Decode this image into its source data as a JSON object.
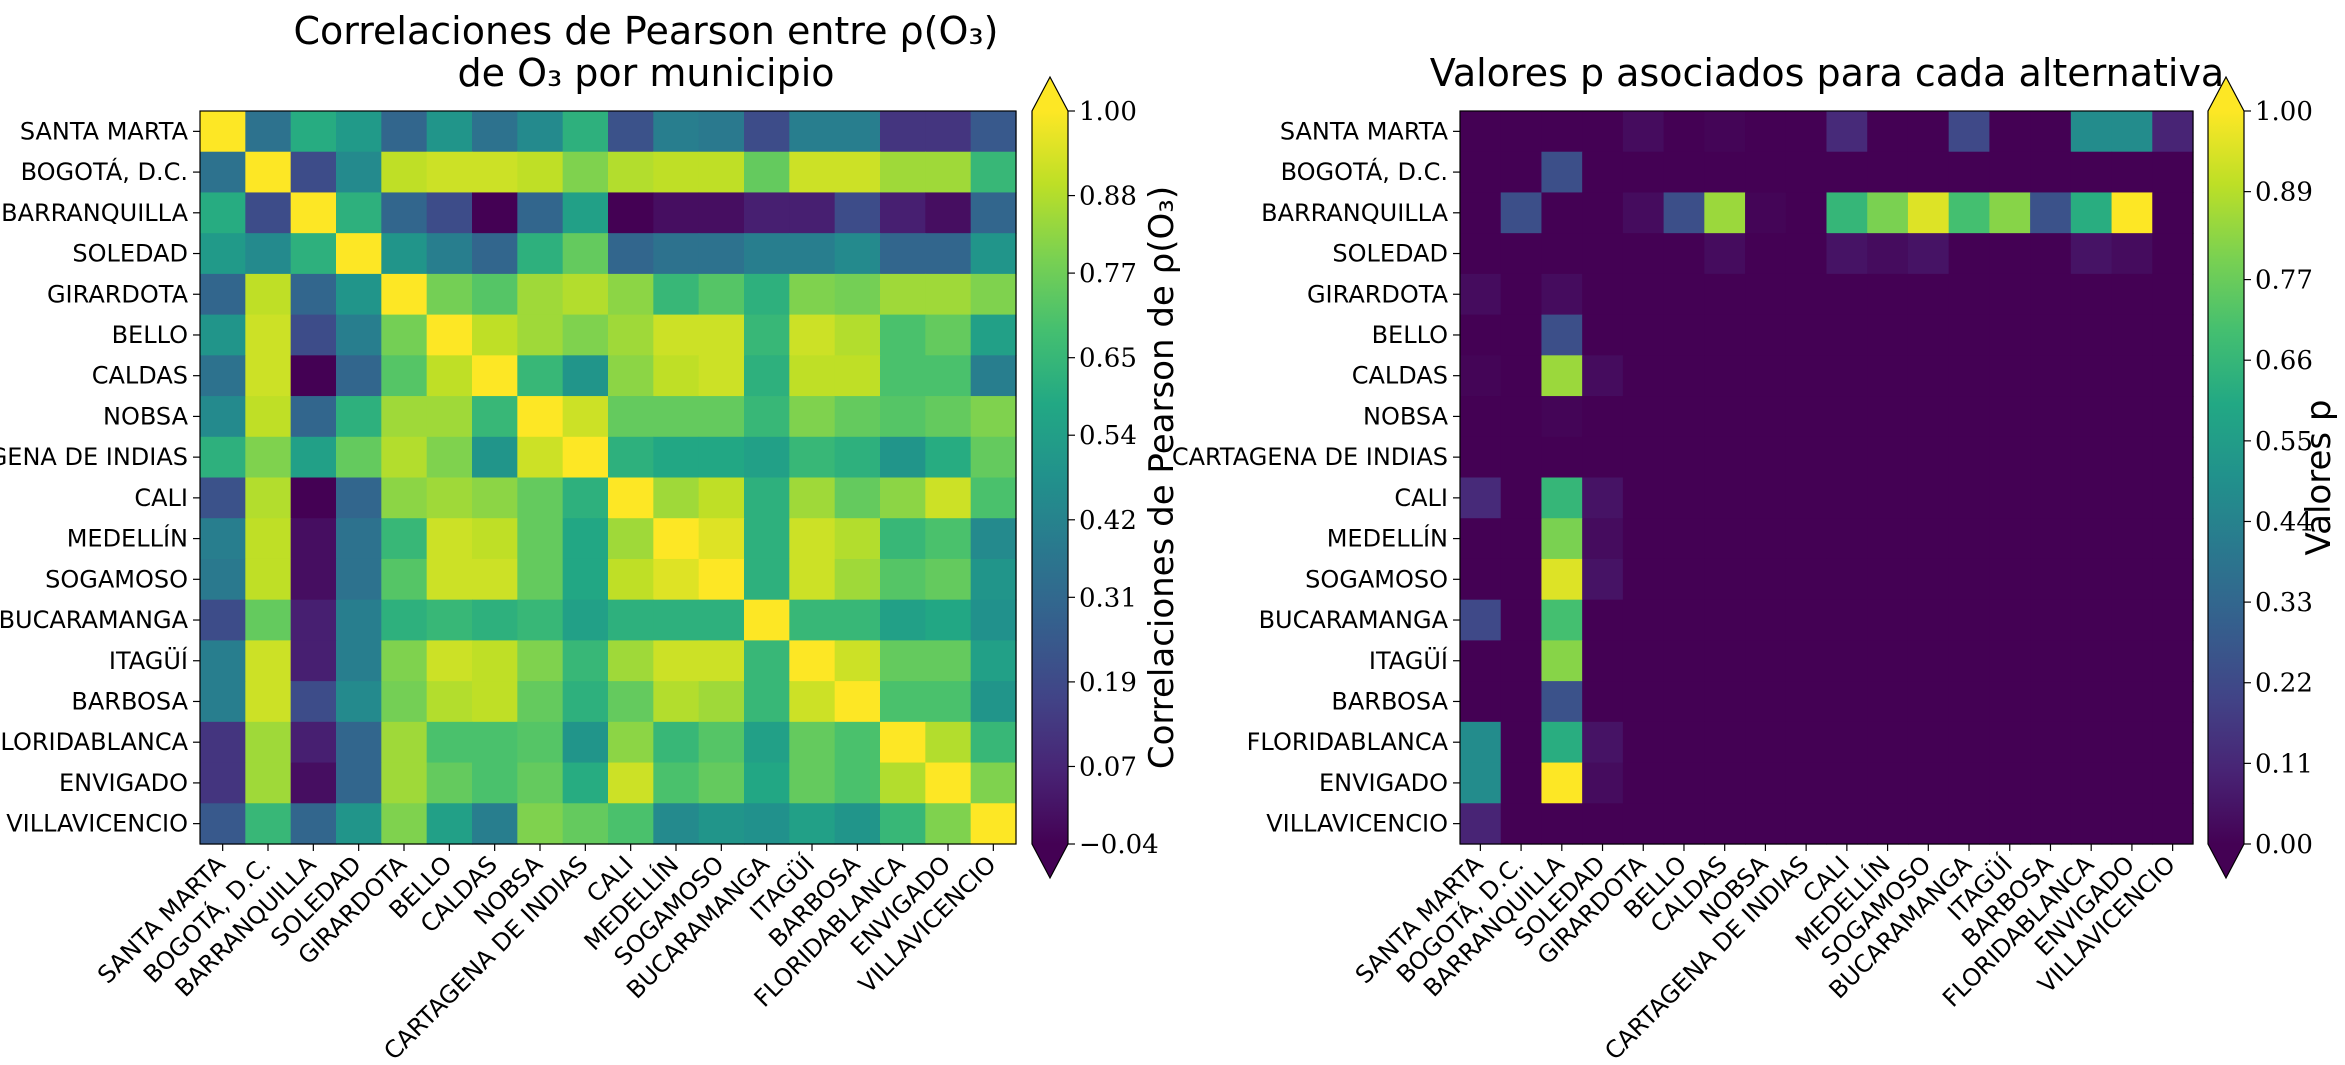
{
  "chart_data": [
    {
      "type": "heatmap",
      "title_lines": [
        "Correlaciones de Pearson entre ρ(O₃)",
        "de O₃ por municipio"
      ],
      "rows": [
        "SANTA MARTA",
        "BOGOTÁ, D.C.",
        "BARRANQUILLA",
        "SOLEDAD",
        "GIRARDOTA",
        "BELLO",
        "CALDAS",
        "NOBSA",
        "CARTAGENA DE INDIAS",
        "CALI",
        "MEDELLÍN",
        "SOGAMOSO",
        "BUCARAMANGA",
        "ITAGÜÍ",
        "BARBOSA",
        "FLORIDABLANCA",
        "ENVIGADO",
        "VILLAVICENCIO"
      ],
      "columns": [
        "SANTA MARTA",
        "BOGOTÁ, D.C.",
        "BARRANQUILLA",
        "SOLEDAD",
        "GIRARDOTA",
        "BELLO",
        "CALDAS",
        "NOBSA",
        "CARTAGENA DE INDIAS",
        "CALI",
        "MEDELLÍN",
        "SOGAMOSO",
        "BUCARAMANGA",
        "ITAGÜÍ",
        "BARBOSA",
        "FLORIDABLANCA",
        "ENVIGADO",
        "VILLAVICENCIO"
      ],
      "values": [
        [
          1.0,
          0.35,
          0.6,
          0.52,
          0.3,
          0.5,
          0.35,
          0.45,
          0.62,
          0.22,
          0.4,
          0.38,
          0.2,
          0.4,
          0.4,
          0.12,
          0.12,
          0.25
        ],
        [
          0.35,
          1.0,
          0.2,
          0.45,
          0.9,
          0.92,
          0.92,
          0.9,
          0.8,
          0.88,
          0.9,
          0.9,
          0.75,
          0.92,
          0.92,
          0.85,
          0.85,
          0.65
        ],
        [
          0.6,
          0.2,
          1.0,
          0.62,
          0.3,
          0.2,
          -0.04,
          0.3,
          0.55,
          -0.04,
          0.0,
          0.0,
          0.05,
          0.05,
          0.2,
          0.05,
          0.0,
          0.3
        ],
        [
          0.52,
          0.45,
          0.62,
          1.0,
          0.5,
          0.4,
          0.3,
          0.62,
          0.75,
          0.3,
          0.35,
          0.35,
          0.4,
          0.4,
          0.45,
          0.3,
          0.3,
          0.5
        ],
        [
          0.3,
          0.9,
          0.3,
          0.5,
          1.0,
          0.78,
          0.72,
          0.85,
          0.88,
          0.82,
          0.65,
          0.72,
          0.62,
          0.8,
          0.78,
          0.85,
          0.85,
          0.8
        ],
        [
          0.5,
          0.92,
          0.2,
          0.4,
          0.78,
          1.0,
          0.9,
          0.85,
          0.8,
          0.85,
          0.92,
          0.92,
          0.65,
          0.92,
          0.88,
          0.7,
          0.75,
          0.55
        ],
        [
          0.35,
          0.92,
          -0.04,
          0.3,
          0.72,
          0.9,
          1.0,
          0.65,
          0.5,
          0.82,
          0.9,
          0.92,
          0.62,
          0.9,
          0.9,
          0.7,
          0.7,
          0.4
        ],
        [
          0.45,
          0.9,
          0.3,
          0.62,
          0.85,
          0.85,
          0.65,
          1.0,
          0.92,
          0.75,
          0.75,
          0.75,
          0.65,
          0.8,
          0.75,
          0.72,
          0.75,
          0.8
        ],
        [
          0.62,
          0.8,
          0.55,
          0.75,
          0.88,
          0.8,
          0.5,
          0.92,
          1.0,
          0.62,
          0.58,
          0.58,
          0.55,
          0.65,
          0.62,
          0.5,
          0.6,
          0.75
        ],
        [
          0.22,
          0.88,
          -0.04,
          0.3,
          0.82,
          0.85,
          0.82,
          0.75,
          0.62,
          1.0,
          0.85,
          0.9,
          0.62,
          0.85,
          0.75,
          0.82,
          0.92,
          0.7
        ],
        [
          0.4,
          0.9,
          0.0,
          0.35,
          0.65,
          0.92,
          0.9,
          0.75,
          0.58,
          0.85,
          1.0,
          0.95,
          0.62,
          0.92,
          0.88,
          0.65,
          0.7,
          0.45
        ],
        [
          0.38,
          0.9,
          0.0,
          0.35,
          0.72,
          0.92,
          0.92,
          0.75,
          0.58,
          0.9,
          0.95,
          1.0,
          0.62,
          0.92,
          0.85,
          0.72,
          0.75,
          0.5
        ],
        [
          0.2,
          0.75,
          0.05,
          0.4,
          0.62,
          0.65,
          0.62,
          0.65,
          0.55,
          0.62,
          0.62,
          0.62,
          1.0,
          0.65,
          0.65,
          0.55,
          0.58,
          0.48
        ],
        [
          0.4,
          0.92,
          0.05,
          0.4,
          0.8,
          0.92,
          0.9,
          0.8,
          0.65,
          0.85,
          0.92,
          0.92,
          0.65,
          1.0,
          0.92,
          0.75,
          0.75,
          0.55
        ],
        [
          0.4,
          0.92,
          0.2,
          0.45,
          0.78,
          0.88,
          0.9,
          0.75,
          0.62,
          0.75,
          0.88,
          0.85,
          0.65,
          0.92,
          1.0,
          0.7,
          0.7,
          0.5
        ],
        [
          0.12,
          0.85,
          0.05,
          0.3,
          0.85,
          0.7,
          0.7,
          0.72,
          0.5,
          0.82,
          0.65,
          0.72,
          0.55,
          0.75,
          0.7,
          1.0,
          0.88,
          0.65
        ],
        [
          0.12,
          0.85,
          0.0,
          0.3,
          0.85,
          0.75,
          0.7,
          0.75,
          0.6,
          0.92,
          0.7,
          0.75,
          0.58,
          0.75,
          0.7,
          0.88,
          1.0,
          0.8
        ],
        [
          0.25,
          0.65,
          0.3,
          0.5,
          0.8,
          0.55,
          0.4,
          0.8,
          0.75,
          0.7,
          0.45,
          0.5,
          0.48,
          0.55,
          0.5,
          0.65,
          0.8,
          1.0
        ]
      ],
      "colorbar": {
        "label": "Correlaciones de Pearson de ρ(O₃)",
        "min": -0.04,
        "max": 1.0,
        "ticks": [
          "1.00",
          "0.88",
          "0.77",
          "0.65",
          "0.54",
          "0.42",
          "0.31",
          "0.19",
          "0.07",
          "−0.04"
        ],
        "tick_values": [
          1.0,
          0.88,
          0.77,
          0.65,
          0.54,
          0.42,
          0.31,
          0.19,
          0.07,
          -0.04
        ]
      },
      "colormap": "viridis"
    },
    {
      "type": "heatmap",
      "title_lines": [
        "Valores p asociados para cada alternativa"
      ],
      "rows": [
        "SANTA MARTA",
        "BOGOTÁ, D.C.",
        "BARRANQUILLA",
        "SOLEDAD",
        "GIRARDOTA",
        "BELLO",
        "CALDAS",
        "NOBSA",
        "CARTAGENA DE INDIAS",
        "CALI",
        "MEDELLÍN",
        "SOGAMOSO",
        "BUCARAMANGA",
        "ITAGÜÍ",
        "BARBOSA",
        "FLORIDABLANCA",
        "ENVIGADO",
        "VILLAVICENCIO"
      ],
      "columns": [
        "SANTA MARTA",
        "BOGOTÁ, D.C.",
        "BARRANQUILLA",
        "SOLEDAD",
        "GIRARDOTA",
        "BELLO",
        "CALDAS",
        "NOBSA",
        "CARTAGENA DE INDIAS",
        "CALI",
        "MEDELLÍN",
        "SOGAMOSO",
        "BUCARAMANGA",
        "ITAGÜÍ",
        "BARBOSA",
        "FLORIDABLANCA",
        "ENVIGADO",
        "VILLAVICENCIO"
      ],
      "values": [
        [
          0.0,
          0.0,
          0.0,
          0.0,
          0.03,
          0.0,
          0.01,
          0.0,
          0.0,
          0.12,
          0.0,
          0.0,
          0.22,
          0.0,
          0.0,
          0.48,
          0.48,
          0.1
        ],
        [
          0.0,
          0.0,
          0.24,
          0.0,
          0.0,
          0.0,
          0.0,
          0.0,
          0.0,
          0.0,
          0.0,
          0.0,
          0.0,
          0.0,
          0.0,
          0.0,
          0.0,
          0.0
        ],
        [
          0.0,
          0.24,
          0.0,
          0.0,
          0.03,
          0.24,
          0.85,
          0.01,
          0.0,
          0.66,
          0.8,
          0.95,
          0.7,
          0.82,
          0.25,
          0.62,
          1.0,
          0.0
        ],
        [
          0.0,
          0.0,
          0.0,
          0.0,
          0.0,
          0.0,
          0.03,
          0.0,
          0.0,
          0.05,
          0.03,
          0.05,
          0.0,
          0.0,
          0.0,
          0.05,
          0.03,
          0.0
        ],
        [
          0.03,
          0.0,
          0.03,
          0.0,
          0.0,
          0.0,
          0.0,
          0.0,
          0.0,
          0.0,
          0.0,
          0.0,
          0.0,
          0.0,
          0.0,
          0.0,
          0.0,
          0.0
        ],
        [
          0.0,
          0.0,
          0.24,
          0.0,
          0.0,
          0.0,
          0.0,
          0.0,
          0.0,
          0.0,
          0.0,
          0.0,
          0.0,
          0.0,
          0.0,
          0.0,
          0.0,
          0.0
        ],
        [
          0.01,
          0.0,
          0.85,
          0.03,
          0.0,
          0.0,
          0.0,
          0.0,
          0.0,
          0.0,
          0.0,
          0.0,
          0.0,
          0.0,
          0.0,
          0.0,
          0.0,
          0.0
        ],
        [
          0.0,
          0.0,
          0.01,
          0.0,
          0.0,
          0.0,
          0.0,
          0.0,
          0.0,
          0.0,
          0.0,
          0.0,
          0.0,
          0.0,
          0.0,
          0.0,
          0.0,
          0.0
        ],
        [
          0.0,
          0.0,
          0.0,
          0.0,
          0.0,
          0.0,
          0.0,
          0.0,
          0.0,
          0.0,
          0.0,
          0.0,
          0.0,
          0.0,
          0.0,
          0.0,
          0.0,
          0.0
        ],
        [
          0.12,
          0.0,
          0.66,
          0.05,
          0.0,
          0.0,
          0.0,
          0.0,
          0.0,
          0.0,
          0.0,
          0.0,
          0.0,
          0.0,
          0.0,
          0.0,
          0.0,
          0.0
        ],
        [
          0.0,
          0.0,
          0.8,
          0.03,
          0.0,
          0.0,
          0.0,
          0.0,
          0.0,
          0.0,
          0.0,
          0.0,
          0.0,
          0.0,
          0.0,
          0.0,
          0.0,
          0.0
        ],
        [
          0.0,
          0.0,
          0.95,
          0.05,
          0.0,
          0.0,
          0.0,
          0.0,
          0.0,
          0.0,
          0.0,
          0.0,
          0.0,
          0.0,
          0.0,
          0.0,
          0.0,
          0.0
        ],
        [
          0.22,
          0.0,
          0.7,
          0.0,
          0.0,
          0.0,
          0.0,
          0.0,
          0.0,
          0.0,
          0.0,
          0.0,
          0.0,
          0.0,
          0.0,
          0.0,
          0.0,
          0.0
        ],
        [
          0.0,
          0.0,
          0.82,
          0.0,
          0.0,
          0.0,
          0.0,
          0.0,
          0.0,
          0.0,
          0.0,
          0.0,
          0.0,
          0.0,
          0.0,
          0.0,
          0.0,
          0.0
        ],
        [
          0.0,
          0.0,
          0.25,
          0.0,
          0.0,
          0.0,
          0.0,
          0.0,
          0.0,
          0.0,
          0.0,
          0.0,
          0.0,
          0.0,
          0.0,
          0.0,
          0.0,
          0.0
        ],
        [
          0.48,
          0.0,
          0.62,
          0.05,
          0.0,
          0.0,
          0.0,
          0.0,
          0.0,
          0.0,
          0.0,
          0.0,
          0.0,
          0.0,
          0.0,
          0.0,
          0.0,
          0.0
        ],
        [
          0.48,
          0.0,
          1.0,
          0.03,
          0.0,
          0.0,
          0.0,
          0.0,
          0.0,
          0.0,
          0.0,
          0.0,
          0.0,
          0.0,
          0.0,
          0.0,
          0.0,
          0.0
        ],
        [
          0.1,
          0.0,
          0.0,
          0.0,
          0.0,
          0.0,
          0.0,
          0.0,
          0.0,
          0.0,
          0.0,
          0.0,
          0.0,
          0.0,
          0.0,
          0.0,
          0.0,
          0.0
        ]
      ],
      "colorbar": {
        "label": "Valores p",
        "min": 0.0,
        "max": 1.0,
        "ticks": [
          "1.00",
          "0.89",
          "0.77",
          "0.66",
          "0.55",
          "0.44",
          "0.33",
          "0.22",
          "0.11",
          "0.00"
        ],
        "tick_values": [
          1.0,
          0.89,
          0.77,
          0.66,
          0.55,
          0.44,
          0.33,
          0.22,
          0.11,
          0.0
        ]
      },
      "colormap": "viridis"
    }
  ]
}
